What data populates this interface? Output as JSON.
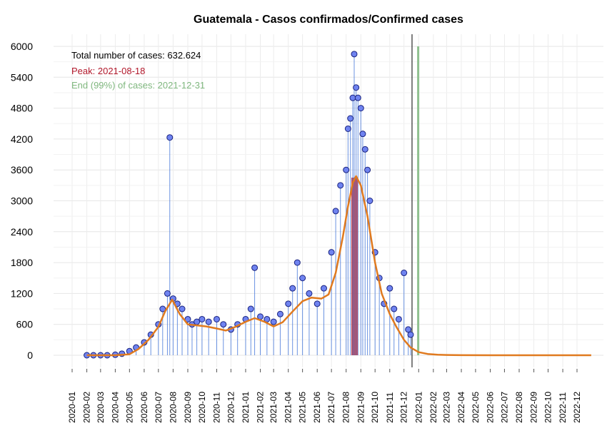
{
  "chart_data": {
    "type": "line",
    "title": "Guatemala - Casos confirmados/Confirmed cases",
    "xlabel": "",
    "ylabel": "",
    "x_range": [
      "2020-01-01",
      "2022-12-31"
    ],
    "x_tick_labels": [
      "2020-01",
      "2020-02",
      "2020-03",
      "2020-04",
      "2020-05",
      "2020-06",
      "2020-07",
      "2020-08",
      "2020-09",
      "2020-10",
      "2020-11",
      "2020-12",
      "2021-01",
      "2021-02",
      "2021-03",
      "2021-04",
      "2021-05",
      "2021-06",
      "2021-07",
      "2021-08",
      "2021-09",
      "2021-10",
      "2021-11",
      "2021-12",
      "2022-01",
      "2022-02",
      "2022-03",
      "2022-04",
      "2022-05",
      "2022-06",
      "2022-07",
      "2022-08",
      "2022-09",
      "2022-10",
      "2022-11",
      "2022-12"
    ],
    "ylim": [
      0,
      6000
    ],
    "y_ticks": [
      0,
      600,
      1200,
      1800,
      2400,
      3000,
      3600,
      4200,
      4800,
      5400,
      6000
    ],
    "grid": true,
    "annotations": {
      "total": "Total number of cases: 632.624",
      "peak": "Peak: 2021-08-18",
      "end": "End (99%) of cases: 2021-12-31"
    },
    "colors": {
      "points_fill": "#6f83f0",
      "points_edge": "#1a237e",
      "stems": "#3a6fd8",
      "smooth": "#e07a1f",
      "peak_band": "#c0303a",
      "end_line": "#8fc08f",
      "today_line": "#000000",
      "peak_text": "#b2182b",
      "end_text": "#7fb77e"
    },
    "vertical_lines": {
      "peak_date": "2021-08-18",
      "end_date": "2021-12-31",
      "today_date": "2021-12-18"
    },
    "series": [
      {
        "kind": "daily",
        "x": [
          "2020-02-01",
          "2020-02-15",
          "2020-03-01",
          "2020-03-15",
          "2020-04-01",
          "2020-04-15",
          "2020-05-01",
          "2020-05-15",
          "2020-06-01",
          "2020-06-15",
          "2020-07-01",
          "2020-07-10",
          "2020-07-20",
          "2020-07-25",
          "2020-08-01",
          "2020-08-10",
          "2020-08-20",
          "2020-09-01",
          "2020-09-10",
          "2020-09-20",
          "2020-10-01",
          "2020-10-15",
          "2020-11-01",
          "2020-11-15",
          "2020-12-01",
          "2020-12-15",
          "2021-01-01",
          "2021-01-12",
          "2021-01-20",
          "2021-02-01",
          "2021-02-15",
          "2021-03-01",
          "2021-03-15",
          "2021-04-01",
          "2021-04-10",
          "2021-04-20",
          "2021-05-01",
          "2021-05-15",
          "2021-06-01",
          "2021-06-15",
          "2021-07-01",
          "2021-07-10",
          "2021-07-20",
          "2021-08-01",
          "2021-08-05",
          "2021-08-10",
          "2021-08-15",
          "2021-08-18",
          "2021-08-22",
          "2021-08-26",
          "2021-09-01",
          "2021-09-05",
          "2021-09-10",
          "2021-09-15",
          "2021-09-20",
          "2021-10-01",
          "2021-10-10",
          "2021-10-20",
          "2021-11-01",
          "2021-11-10",
          "2021-11-20",
          "2021-12-01",
          "2021-12-10",
          "2021-12-15"
        ],
        "values": [
          0,
          0,
          0,
          0,
          10,
          30,
          80,
          150,
          250,
          400,
          600,
          900,
          1200,
          4230,
          1100,
          1000,
          900,
          700,
          600,
          650,
          700,
          650,
          700,
          600,
          500,
          600,
          700,
          900,
          1700,
          750,
          700,
          650,
          800,
          1000,
          1300,
          1800,
          1500,
          1200,
          1000,
          1300,
          2000,
          2800,
          3300,
          3600,
          4400,
          4600,
          5000,
          5850,
          5200,
          5000,
          4800,
          4300,
          4000,
          3600,
          3000,
          2000,
          1500,
          1000,
          1300,
          900,
          700,
          1600,
          500,
          400
        ]
      },
      {
        "kind": "smoothed",
        "x": [
          "2020-02-01",
          "2020-03-01",
          "2020-04-01",
          "2020-05-01",
          "2020-05-20",
          "2020-06-10",
          "2020-07-01",
          "2020-07-15",
          "2020-07-30",
          "2020-08-15",
          "2020-09-01",
          "2020-09-20",
          "2020-10-10",
          "2020-11-01",
          "2020-11-20",
          "2020-12-10",
          "2021-01-01",
          "2021-01-20",
          "2021-02-10",
          "2021-03-01",
          "2021-03-20",
          "2021-04-10",
          "2021-05-01",
          "2021-05-20",
          "2021-06-10",
          "2021-06-25",
          "2021-07-10",
          "2021-07-25",
          "2021-08-05",
          "2021-08-15",
          "2021-08-22",
          "2021-09-01",
          "2021-09-15",
          "2021-10-01",
          "2021-10-15",
          "2021-11-01",
          "2021-11-15",
          "2021-12-01",
          "2021-12-15",
          "2022-01-01",
          "2022-01-20",
          "2022-02-10",
          "2022-03-01",
          "2022-04-01",
          "2022-06-01",
          "2022-09-01",
          "2022-12-31"
        ],
        "values": [
          0,
          0,
          0,
          20,
          120,
          300,
          550,
          850,
          1080,
          800,
          600,
          580,
          560,
          520,
          480,
          550,
          650,
          720,
          650,
          560,
          640,
          850,
          1050,
          1120,
          1100,
          1180,
          1600,
          2300,
          2900,
          3350,
          3480,
          3300,
          2700,
          1800,
          1200,
          800,
          550,
          300,
          150,
          60,
          25,
          10,
          5,
          2,
          0,
          0,
          0
        ]
      }
    ]
  }
}
